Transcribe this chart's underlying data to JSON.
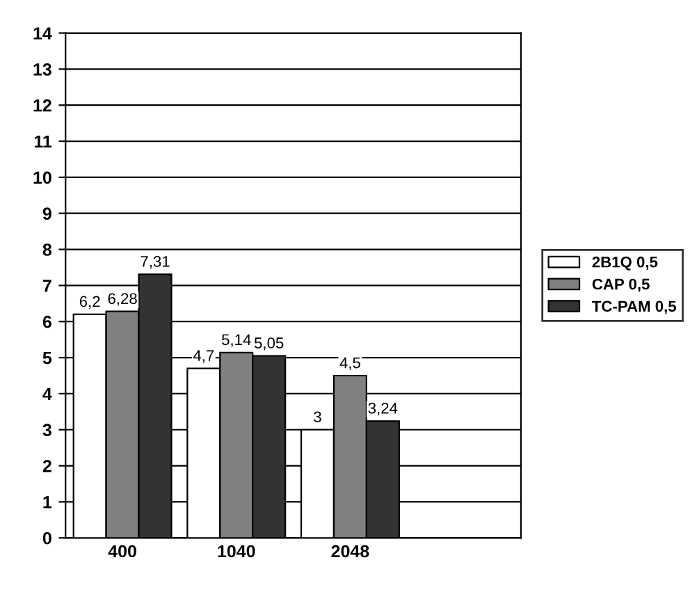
{
  "chart_data": {
    "type": "bar",
    "categories": [
      "400",
      "1040",
      "2048",
      null
    ],
    "series": [
      {
        "name": "2B1Q 0,5",
        "color": "#ffffff",
        "values": [
          6.2,
          4.7,
          3,
          null
        ],
        "value_labels": [
          "6,2",
          "4,7",
          "3",
          null
        ]
      },
      {
        "name": "CAP 0,5",
        "color": "#808080",
        "values": [
          6.28,
          5.14,
          4.5,
          null
        ],
        "value_labels": [
          "6,28",
          "5,14",
          "4,5",
          null
        ]
      },
      {
        "name": "TC-PAM 0,5",
        "color": "#333333",
        "values": [
          7.31,
          5.05,
          3.24,
          null
        ],
        "value_labels": [
          "7,31",
          "5,05",
          "3,24",
          null
        ]
      }
    ],
    "ylim": [
      0,
      14
    ],
    "yticks": [
      0,
      1,
      2,
      3,
      4,
      5,
      6,
      7,
      8,
      9,
      10,
      11,
      12,
      13,
      14
    ],
    "grid": "y",
    "legend": "right"
  }
}
